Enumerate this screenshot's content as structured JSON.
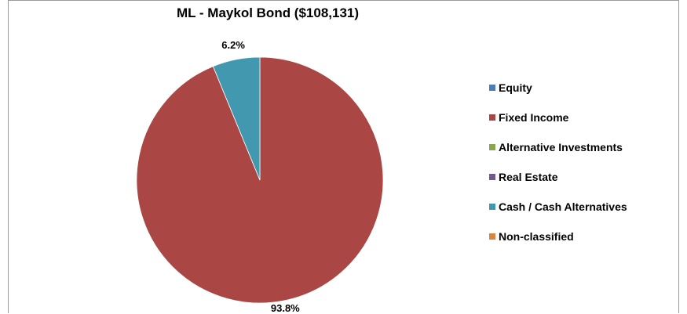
{
  "chart_data": {
    "type": "pie",
    "title": "ML - Maykol Bond ($108,131)",
    "legend_position": "right",
    "slices": [
      {
        "label": "Equity",
        "value": 0,
        "color": "#4a7ebb"
      },
      {
        "label": "Fixed Income",
        "value": 93.8,
        "color": "#aa4643"
      },
      {
        "label": "Alternative Investments",
        "value": 0,
        "color": "#89a54e"
      },
      {
        "label": "Real Estate",
        "value": 0,
        "color": "#71588f"
      },
      {
        "label": "Cash / Cash Alternatives",
        "value": 6.2,
        "color": "#4198af"
      },
      {
        "label": "Non-classified",
        "value": 0,
        "color": "#db843d"
      }
    ],
    "data_labels": [
      "93.8%",
      "6.2%"
    ]
  }
}
